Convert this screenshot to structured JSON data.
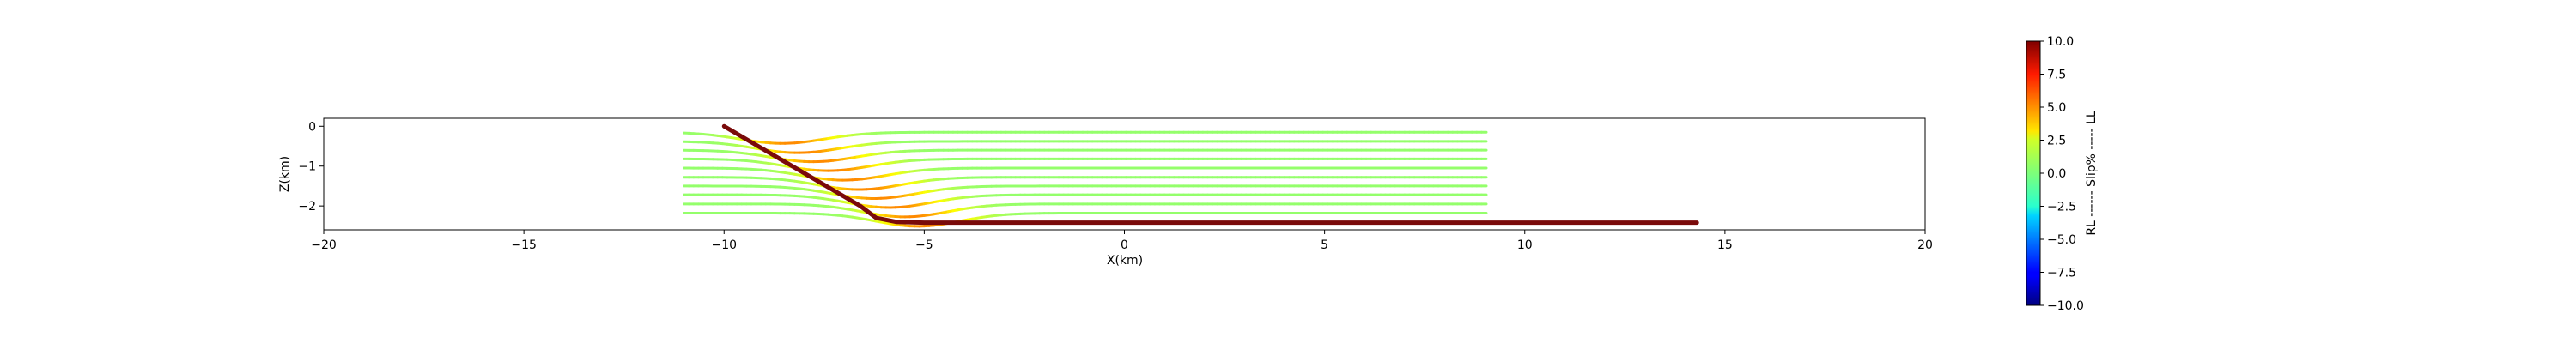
{
  "chart_data": [
    {
      "type": "line",
      "title": "",
      "xlabel": "X(km)",
      "ylabel": "Z(km)",
      "xlim": [
        -20,
        20
      ],
      "ylim": [
        -2.6,
        0.2
      ],
      "xticks": [
        -20,
        -15,
        -10,
        -5,
        0,
        5,
        10,
        15,
        20
      ],
      "xtick_labels": [
        "−20",
        "−15",
        "−10",
        "−5",
        "0",
        "5",
        "10",
        "15",
        "20"
      ],
      "yticks": [
        0,
        -1,
        -2
      ],
      "ytick_labels": [
        "0",
        "−1",
        "−2"
      ],
      "grid": false,
      "legend": "none",
      "fault_trace": {
        "color": "#7a0a0a",
        "points": [
          [
            -10.0,
            0.0
          ],
          [
            -6.6,
            -2.0
          ],
          [
            -6.2,
            -2.3
          ],
          [
            -5.7,
            -2.4
          ],
          [
            -5.0,
            -2.42
          ],
          [
            14.3,
            -2.42
          ]
        ]
      },
      "streamline_levels_z": [
        -0.15,
        -0.38,
        -0.6,
        -0.82,
        -1.05,
        -1.28,
        -1.5,
        -1.72,
        -1.95,
        -2.18
      ],
      "streamline_x_range": [
        -11.0,
        9.1
      ],
      "streamline_base_slip": 0.4,
      "streamline_peak_slip": 4.8,
      "streamline_peak_offset_km": 1.5
    },
    {
      "type": "heatmap",
      "colormap": "jet",
      "label": "RL ------ Slip% ----- LL",
      "range": [
        -10,
        10
      ],
      "ticks": [
        10,
        7.5,
        5,
        2.5,
        0,
        -2.5,
        -5,
        -7.5,
        -10
      ],
      "tick_labels": [
        "10.0",
        "7.5",
        "5.0",
        "2.5",
        "0.0",
        "−2.5",
        "−5.0",
        "−7.5",
        "−10.0"
      ]
    }
  ]
}
